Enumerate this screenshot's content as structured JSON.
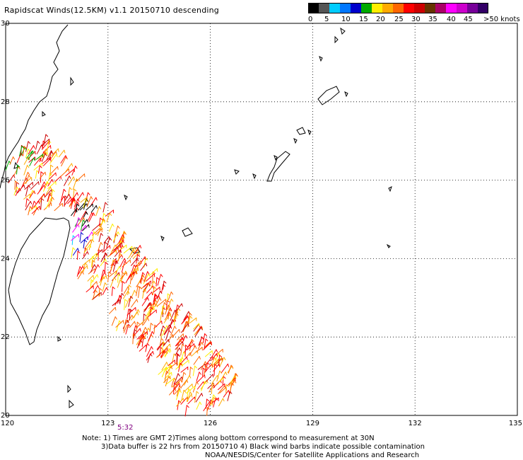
{
  "title": "Rapidscat Winds(12.5KM) v1.1 20150710 descending",
  "colorbar": {
    "colors": [
      "#000000",
      "#555555",
      "#00ccff",
      "#0077ff",
      "#0000cc",
      "#00aa00",
      "#ffee00",
      "#ffaa00",
      "#ff6600",
      "#ff0000",
      "#cc0000",
      "#663300",
      "#aa0066",
      "#ff00ff",
      "#cc00cc",
      "#770099",
      "#330066"
    ],
    "labels": [
      "0",
      "5",
      "10",
      "15",
      "20",
      "25",
      "30",
      "35",
      "40",
      "45",
      ">50 knots"
    ]
  },
  "axes": {
    "lon_labels": [
      "120",
      "123",
      "126",
      "129",
      "132",
      "135"
    ],
    "lat_labels": [
      "30",
      "28",
      "26",
      "24",
      "22",
      "20"
    ],
    "lon_range": [
      120,
      135
    ],
    "lat_range": [
      20,
      30
    ],
    "grid": "dotted"
  },
  "timestamp": "5:32",
  "notes": {
    "line1": "Note: 1) Times are GMT 2)Times along bottom correspond to measurement at 30N",
    "line2": "3)Data buffer is 22 hrs from 20150710 4) Black wind barbs indicate possible contamination",
    "line3": "NOAA/NESDIS/Center for Satellite Applications and Research"
  }
}
